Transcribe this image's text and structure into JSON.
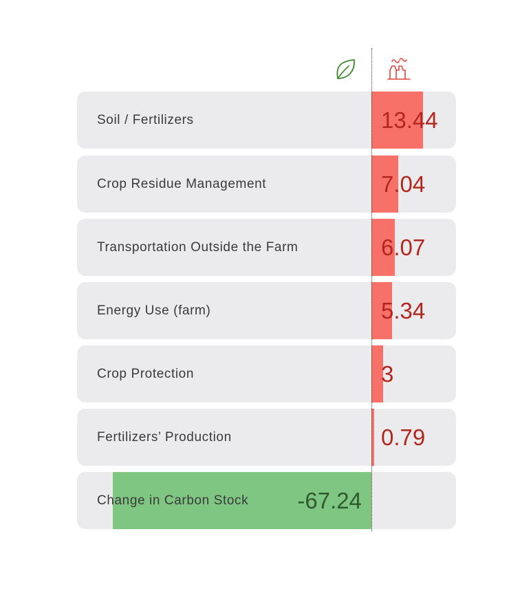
{
  "colors": {
    "positive_bar": "#f87168",
    "positive_text": "#b3261e",
    "negative_bar": "#80c683",
    "negative_text": "#2f5a30",
    "leaf_icon": "#3f8a2e",
    "factory_icon": "#e0453b"
  },
  "icons": {
    "sequestration": "leaf-icon",
    "emissions": "factory-icon"
  },
  "chart_data": {
    "type": "bar",
    "orientation": "horizontal",
    "categories": [
      "Soil / Fertilizers",
      "Crop Residue Management",
      "Transportation Outside the Farm",
      "Energy Use (farm)",
      "Crop Protection",
      "Fertilizers’ Production",
      "Change in Carbon Stock"
    ],
    "values": [
      13.44,
      7.04,
      6.07,
      5.34,
      3,
      0.79,
      -67.24
    ],
    "value_labels": [
      "13.44",
      "7.04",
      "6.07",
      "5.34",
      "3",
      "0.79",
      "-67.24"
    ],
    "xlim": [
      -71,
      22
    ],
    "grid": false,
    "zero_line": "dotted"
  }
}
